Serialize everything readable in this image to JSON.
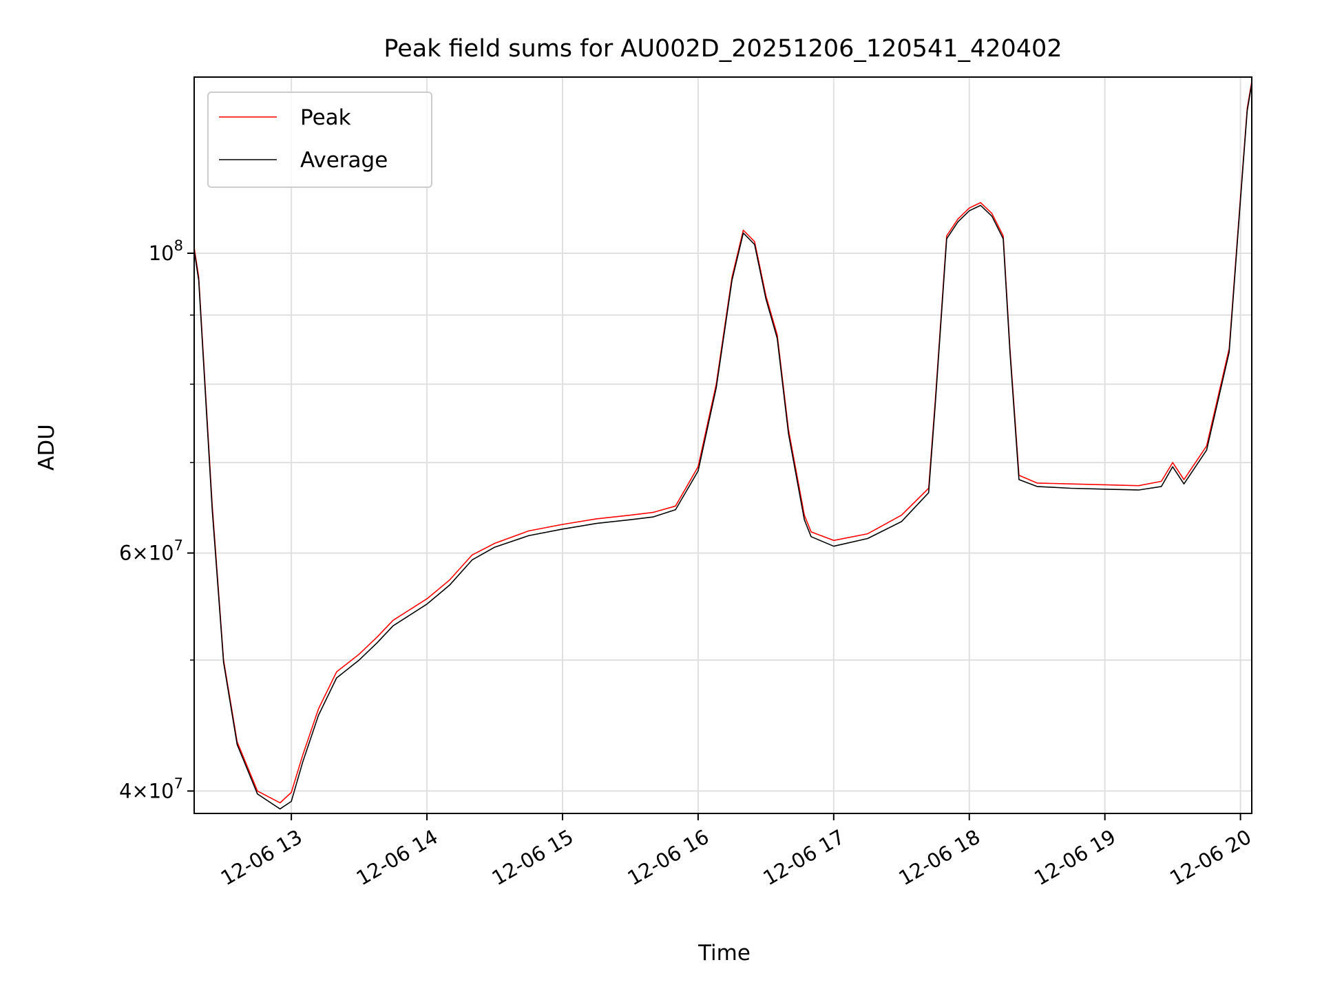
{
  "chart_data": {
    "type": "line",
    "title": "Peak field sums for AU002D_20251206_120541_420402",
    "xlabel": "Time",
    "ylabel": "ADU",
    "y_scale": "log",
    "xlim": [
      "12-06 12:17",
      "12-06 20:05"
    ],
    "ylim": [
      38500000,
      135000000
    ],
    "x_ticks": [
      {
        "value": "12-06 13:00",
        "label": "12-06 13"
      },
      {
        "value": "12-06 14:00",
        "label": "12-06 14"
      },
      {
        "value": "12-06 15:00",
        "label": "12-06 15"
      },
      {
        "value": "12-06 16:00",
        "label": "12-06 16"
      },
      {
        "value": "12-06 17:00",
        "label": "12-06 17"
      },
      {
        "value": "12-06 18:00",
        "label": "12-06 18"
      },
      {
        "value": "12-06 19:00",
        "label": "12-06 19"
      },
      {
        "value": "12-06 20:00",
        "label": "12-06 20"
      }
    ],
    "y_major_ticks": [
      {
        "value": 40000000,
        "mantissa": "4",
        "exponent": "7"
      },
      {
        "value": 60000000,
        "mantissa": "6",
        "exponent": "7"
      },
      {
        "value": 100000000,
        "mantissa": "",
        "exponent": "8",
        "base": "10"
      }
    ],
    "y_minor_gridlines": [
      40000000,
      50000000,
      60000000,
      70000000,
      80000000,
      90000000,
      100000000
    ],
    "grid": true,
    "legend_position": "top-left",
    "series": [
      {
        "name": "Peak",
        "color": "#ff0000",
        "x": [
          "12-06 12:17",
          "12-06 12:19",
          "12-06 12:25",
          "12-06 12:30",
          "12-06 12:36",
          "12-06 12:45",
          "12-06 12:55",
          "12-06 13:00",
          "12-06 13:05",
          "12-06 13:12",
          "12-06 13:20",
          "12-06 13:30",
          "12-06 13:38",
          "12-06 13:45",
          "12-06 14:00",
          "12-06 14:10",
          "12-06 14:20",
          "12-06 14:30",
          "12-06 14:45",
          "12-06 15:00",
          "12-06 15:15",
          "12-06 15:30",
          "12-06 15:40",
          "12-06 15:50",
          "12-06 16:00",
          "12-06 16:08",
          "12-06 16:15",
          "12-06 16:20",
          "12-06 16:25",
          "12-06 16:30",
          "12-06 16:35",
          "12-06 16:40",
          "12-06 16:47",
          "12-06 16:50",
          "12-06 17:00",
          "12-06 17:15",
          "12-06 17:30",
          "12-06 17:42",
          "12-06 17:45",
          "12-06 17:50",
          "12-06 17:55",
          "12-06 18:00",
          "12-06 18:05",
          "12-06 18:10",
          "12-06 18:15",
          "12-06 18:18",
          "12-06 18:22",
          "12-06 18:30",
          "12-06 18:45",
          "12-06 19:00",
          "12-06 19:15",
          "12-06 19:25",
          "12-06 19:30",
          "12-06 19:35",
          "12-06 19:45",
          "12-06 19:55",
          "12-06 20:00",
          "12-06 20:03",
          "12-06 20:05"
        ],
        "y": [
          101000000,
          96000000,
          65000000,
          50000000,
          43500000,
          40000000,
          39200000,
          39900000,
          42500000,
          46000000,
          49000000,
          50500000,
          52000000,
          53500000,
          55500000,
          57300000,
          59800000,
          61000000,
          62300000,
          63000000,
          63600000,
          64000000,
          64300000,
          65000000,
          69500000,
          80000000,
          96000000,
          104000000,
          102000000,
          93000000,
          87000000,
          74000000,
          64000000,
          62200000,
          61300000,
          62000000,
          64000000,
          67000000,
          78000000,
          103000000,
          106000000,
          108000000,
          109000000,
          107000000,
          103000000,
          85000000,
          68500000,
          67600000,
          67500000,
          67400000,
          67300000,
          67800000,
          70000000,
          68000000,
          72000000,
          85000000,
          110000000,
          128000000,
          134000000
        ]
      },
      {
        "name": "Average",
        "color": "#000000",
        "x": [
          "12-06 12:17",
          "12-06 12:19",
          "12-06 12:25",
          "12-06 12:30",
          "12-06 12:36",
          "12-06 12:45",
          "12-06 12:55",
          "12-06 13:00",
          "12-06 13:05",
          "12-06 13:12",
          "12-06 13:20",
          "12-06 13:30",
          "12-06 13:38",
          "12-06 13:45",
          "12-06 14:00",
          "12-06 14:10",
          "12-06 14:20",
          "12-06 14:30",
          "12-06 14:45",
          "12-06 15:00",
          "12-06 15:15",
          "12-06 15:30",
          "12-06 15:40",
          "12-06 15:50",
          "12-06 16:00",
          "12-06 16:08",
          "12-06 16:15",
          "12-06 16:20",
          "12-06 16:25",
          "12-06 16:30",
          "12-06 16:35",
          "12-06 16:40",
          "12-06 16:47",
          "12-06 16:50",
          "12-06 17:00",
          "12-06 17:15",
          "12-06 17:30",
          "12-06 17:42",
          "12-06 17:45",
          "12-06 17:50",
          "12-06 17:55",
          "12-06 18:00",
          "12-06 18:05",
          "12-06 18:10",
          "12-06 18:15",
          "12-06 18:18",
          "12-06 18:22",
          "12-06 18:30",
          "12-06 18:45",
          "12-06 19:00",
          "12-06 19:15",
          "12-06 19:25",
          "12-06 19:30",
          "12-06 19:35",
          "12-06 19:45",
          "12-06 19:55",
          "12-06 20:00",
          "12-06 20:03",
          "12-06 20:05"
        ],
        "y": [
          100500000,
          95500000,
          64500000,
          49800000,
          43300000,
          39800000,
          38800000,
          39300000,
          42000000,
          45500000,
          48500000,
          50000000,
          51500000,
          53000000,
          55000000,
          56800000,
          59300000,
          60600000,
          61800000,
          62500000,
          63100000,
          63500000,
          63800000,
          64600000,
          69000000,
          79500000,
          95500000,
          103500000,
          101500000,
          92500000,
          86500000,
          73500000,
          63500000,
          61700000,
          60700000,
          61500000,
          63300000,
          66500000,
          77500000,
          102500000,
          105500000,
          107500000,
          108500000,
          106500000,
          102500000,
          84500000,
          68000000,
          67200000,
          67000000,
          66900000,
          66800000,
          67200000,
          69500000,
          67500000,
          71500000,
          84500000,
          109500000,
          127500000,
          133500000
        ]
      }
    ]
  }
}
